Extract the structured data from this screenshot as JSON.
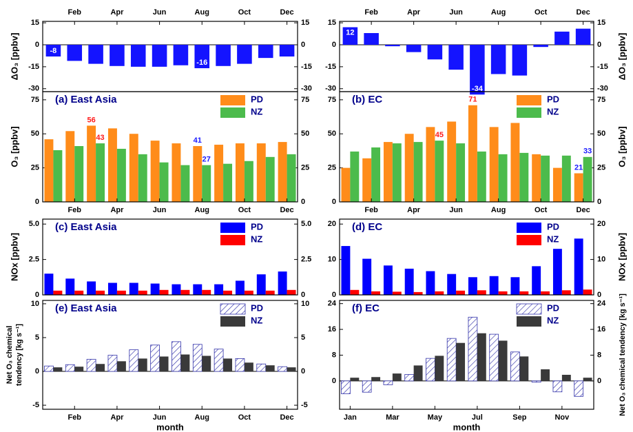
{
  "chart_data": [
    {
      "type": "bar",
      "xaxis_position": "top",
      "categories": [
        null,
        "Feb",
        null,
        "Apr",
        null,
        "Jun",
        null,
        "Aug",
        null,
        "Oct",
        null,
        "Dec"
      ],
      "ylabel": "ΔO₃ [ppbv]",
      "ylim": [
        -32,
        16
      ],
      "yticks": [
        -30,
        -15,
        0,
        15
      ],
      "series": [
        {
          "name": "ΔO₃",
          "color": "#1414ff",
          "values": [
            -8,
            -11,
            -13,
            -14.5,
            -15,
            -15,
            -14,
            -16,
            -14.5,
            -13,
            -9,
            -8
          ],
          "value_labels": [
            "-8",
            null,
            null,
            null,
            null,
            null,
            null,
            "-16",
            null,
            null,
            null,
            null
          ]
        }
      ]
    },
    {
      "type": "bar",
      "title": "(a) East Asia",
      "categories": [
        null,
        "Feb",
        null,
        "Apr",
        null,
        "Jun",
        null,
        "Aug",
        null,
        "Oct",
        null,
        "Dec"
      ],
      "ylabel": "O₃ [ppbv]",
      "ylim": [
        0,
        81
      ],
      "yticks": [
        0,
        25,
        50,
        75
      ],
      "series": [
        {
          "name": "PD",
          "color": "#ff8c1a",
          "values": [
            46,
            52,
            56,
            54,
            50,
            45,
            43,
            41,
            42,
            43,
            43,
            44
          ],
          "value_labels": [
            null,
            null,
            "56",
            null,
            null,
            null,
            null,
            "41",
            null,
            null,
            null,
            null
          ]
        },
        {
          "name": "NZ",
          "color": "#4cbb4c",
          "values": [
            38,
            41,
            43,
            39,
            35,
            29,
            27,
            27,
            28,
            30,
            33,
            35
          ],
          "value_labels": [
            null,
            null,
            "43",
            null,
            null,
            null,
            null,
            "27",
            null,
            null,
            null,
            null
          ]
        }
      ]
    },
    {
      "type": "bar",
      "xaxis_position": "top",
      "categories": [
        null,
        "Feb",
        null,
        "Apr",
        null,
        "Jun",
        null,
        "Aug",
        null,
        "Oct",
        null,
        "Dec"
      ],
      "ylabel": "ΔO₃ [ppbv]",
      "ylim": [
        -32,
        16
      ],
      "yticks": [
        -30,
        -15,
        0,
        15
      ],
      "series": [
        {
          "name": "ΔO₃",
          "color": "#1414ff",
          "values": [
            12,
            8,
            -1,
            -5,
            -10,
            -17,
            -34,
            -20,
            -21,
            -1.5,
            9,
            11
          ],
          "value_labels": [
            "12",
            null,
            null,
            null,
            null,
            null,
            "-34",
            null,
            null,
            null,
            null,
            null
          ]
        }
      ]
    },
    {
      "type": "bar",
      "title": "(b) EC",
      "categories": [
        null,
        "Feb",
        null,
        "Apr",
        null,
        "Jun",
        null,
        "Aug",
        null,
        "Oct",
        null,
        "Dec"
      ],
      "ylabel": "O₃ [ppbv]",
      "ylim": [
        0,
        81
      ],
      "yticks": [
        0,
        25,
        50,
        75
      ],
      "series": [
        {
          "name": "PD",
          "color": "#ff8c1a",
          "values": [
            25,
            32,
            44,
            50,
            55,
            59,
            71,
            55,
            58,
            35,
            25,
            21
          ],
          "value_labels": [
            null,
            null,
            null,
            null,
            null,
            null,
            "71",
            null,
            null,
            null,
            null,
            "21"
          ]
        },
        {
          "name": "NZ",
          "color": "#4cbb4c",
          "values": [
            37,
            40,
            43,
            44,
            45,
            43,
            37,
            35,
            36,
            34,
            34,
            33
          ],
          "value_labels": [
            null,
            null,
            null,
            null,
            "45",
            null,
            null,
            null,
            null,
            null,
            null,
            "33"
          ]
        }
      ]
    },
    {
      "type": "bar",
      "title": "(c) East Asia",
      "ylabel": "NOx [ppbv]",
      "ylim": [
        0,
        5.35
      ],
      "yticks": [
        0,
        2.5,
        {
          "value": 5,
          "label": "5.0"
        }
      ],
      "series": [
        {
          "name": "PD",
          "color": "#0000ff",
          "values": [
            1.5,
            1.15,
            0.95,
            0.85,
            0.85,
            0.8,
            0.75,
            0.75,
            0.75,
            1.0,
            1.45,
            1.65
          ]
        },
        {
          "name": "NZ",
          "color": "#ff0000",
          "values": [
            0.3,
            0.3,
            0.3,
            0.3,
            0.3,
            0.35,
            0.35,
            0.35,
            0.3,
            0.3,
            0.3,
            0.35
          ]
        }
      ]
    },
    {
      "type": "bar",
      "title": "(d) EC",
      "ylabel": "NOx [ppbv]",
      "ylim": [
        0,
        21.4
      ],
      "yticks": [
        0,
        10,
        20
      ],
      "series": [
        {
          "name": "PD",
          "color": "#0000ff",
          "values": [
            13.8,
            10.2,
            8.3,
            7.4,
            6.7,
            5.9,
            5.0,
            5.3,
            5.0,
            8.1,
            13.0,
            15.9
          ]
        },
        {
          "name": "NZ",
          "color": "#ff0000",
          "values": [
            1.4,
            1.0,
            0.9,
            0.8,
            1.0,
            1.2,
            1.3,
            1.0,
            1.0,
            1.0,
            1.3,
            1.5
          ]
        }
      ]
    },
    {
      "type": "bar",
      "title": "(e) East Asia",
      "categories": [
        null,
        "Feb",
        null,
        "Apr",
        null,
        "Jun",
        null,
        "Aug",
        null,
        "Oct",
        null,
        "Dec"
      ],
      "xlabel": "month",
      "ylabel": [
        "Net O₃ chemical",
        "tendency [kg s⁻¹]"
      ],
      "ylim": [
        -5.6,
        10.5
      ],
      "yticks": [
        -5,
        0,
        5,
        10
      ],
      "series": [
        {
          "name": "PD",
          "color": "#3333aa",
          "hatch": true,
          "values": [
            0.8,
            1.0,
            1.8,
            2.4,
            3.2,
            3.9,
            4.4,
            4.0,
            3.3,
            1.9,
            1.1,
            0.7
          ]
        },
        {
          "name": "NZ",
          "color": "#3a3a3a",
          "values": [
            0.6,
            0.7,
            1.1,
            1.5,
            1.9,
            2.2,
            2.5,
            2.3,
            1.9,
            1.3,
            0.9,
            0.6
          ]
        }
      ]
    },
    {
      "type": "bar",
      "title": "(f) EC",
      "categories": [
        "Jan",
        null,
        "Mar",
        null,
        "May",
        null,
        "Jul",
        null,
        "Sep",
        null,
        "Nov",
        null
      ],
      "xlabel": "month",
      "ylabel": "Net O₃ chemical tendency [kg s⁻¹]",
      "ylim": [
        -8.8,
        25
      ],
      "yticks": [
        0,
        8,
        16,
        24
      ],
      "series": [
        {
          "name": "PD",
          "color": "#3333aa",
          "hatch": true,
          "values": [
            -4,
            -3.5,
            -1.2,
            2,
            7,
            13.2,
            19.8,
            14.5,
            9,
            -0.4,
            -3.4,
            -4.8
          ]
        },
        {
          "name": "NZ",
          "color": "#3a3a3a",
          "values": [
            1,
            1.2,
            2.3,
            4.8,
            7.8,
            11.8,
            14.8,
            12.5,
            7.6,
            3.6,
            1.9,
            1.0
          ]
        }
      ]
    }
  ]
}
